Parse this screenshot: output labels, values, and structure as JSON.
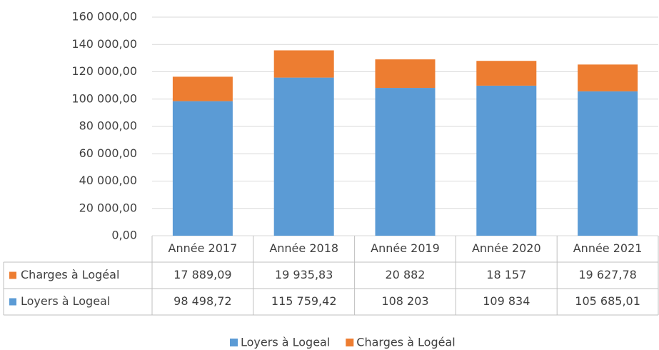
{
  "chart_data": {
    "type": "bar",
    "stacked": true,
    "categories": [
      "Année 2017",
      "Année 2018",
      "Année 2019",
      "Année 2020",
      "Année 2021"
    ],
    "series": [
      {
        "name": "Loyers à Logeal",
        "color": "#5b9bd5",
        "values": [
          98498.72,
          115759.42,
          108203,
          109834,
          105685.01
        ],
        "value_labels": [
          "98 498,72",
          "115 759,42",
          "108 203",
          "109 834",
          "105 685,01"
        ]
      },
      {
        "name": "Charges à Logéal",
        "color": "#ed7d31",
        "values": [
          17889.09,
          19935.83,
          20882,
          18157,
          19627.78
        ],
        "value_labels": [
          "17 889,09",
          "19 935,83",
          "20 882",
          "18 157",
          "19 627,78"
        ]
      }
    ],
    "ylim": [
      0,
      160000
    ],
    "yticks": [
      {
        "value": 0,
        "label": "0,00"
      },
      {
        "value": 20000,
        "label": "20 000,00"
      },
      {
        "value": 40000,
        "label": "40 000,00"
      },
      {
        "value": 60000,
        "label": "60 000,00"
      },
      {
        "value": 80000,
        "label": "80 000,00"
      },
      {
        "value": 100000,
        "label": "100 000,00"
      },
      {
        "value": 120000,
        "label": "120 000,00"
      },
      {
        "value": 140000,
        "label": "140 000,00"
      },
      {
        "value": 160000,
        "label": "160 000,00"
      }
    ],
    "grid": true,
    "data_table": true,
    "legend": "bottom"
  }
}
